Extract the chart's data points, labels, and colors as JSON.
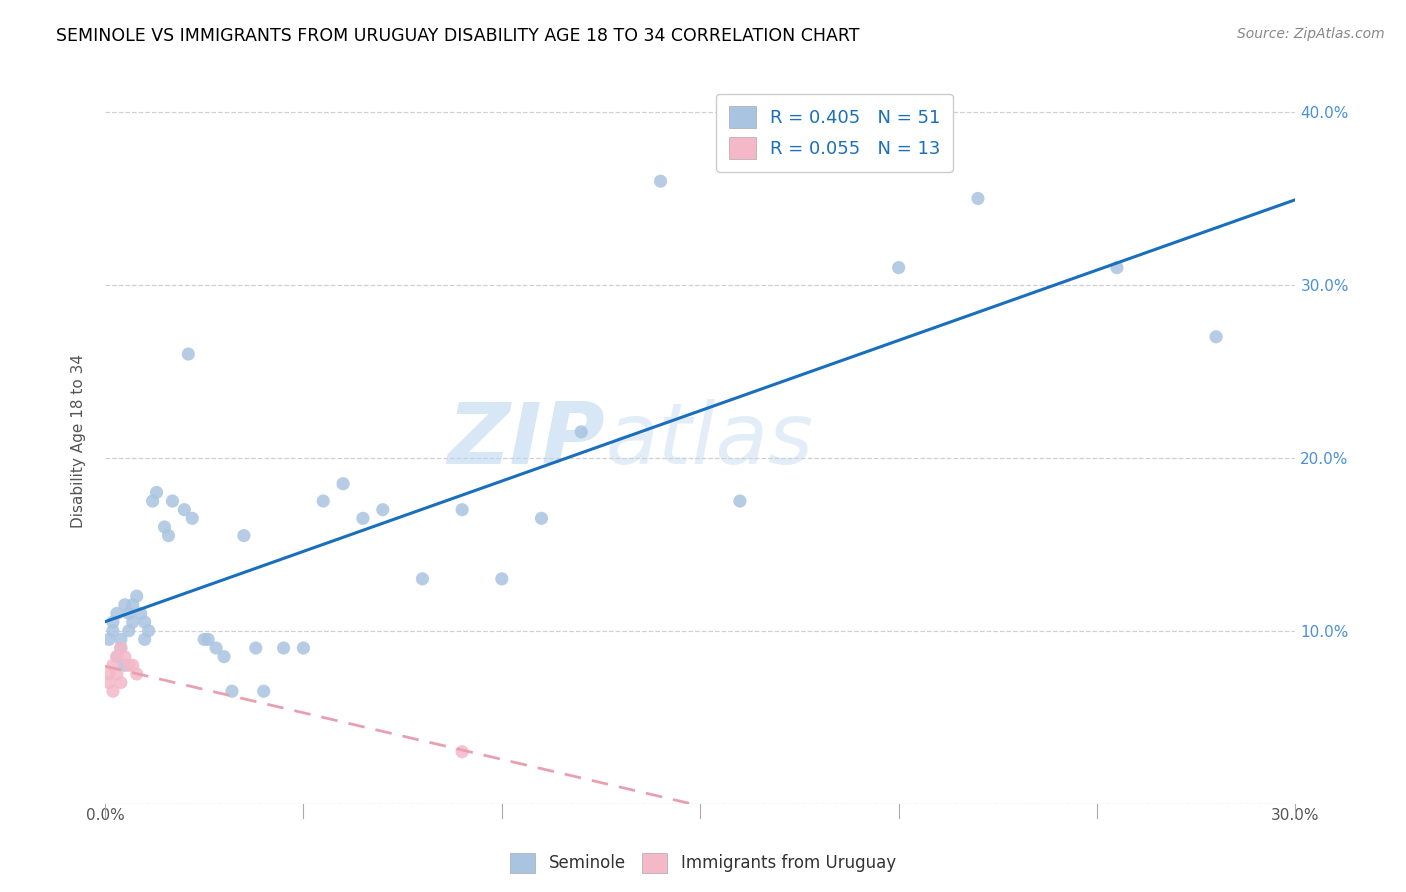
{
  "title": "SEMINOLE VS IMMIGRANTS FROM URUGUAY DISABILITY AGE 18 TO 34 CORRELATION CHART",
  "source": "Source: ZipAtlas.com",
  "ylabel": "Disability Age 18 to 34",
  "xlim": [
    0.0,
    0.3
  ],
  "ylim": [
    0.0,
    0.42
  ],
  "xtick_vals": [
    0.0,
    0.05,
    0.1,
    0.15,
    0.2,
    0.25,
    0.3
  ],
  "ytick_vals": [
    0.0,
    0.1,
    0.2,
    0.3,
    0.4
  ],
  "seminole_color": "#a8c4e0",
  "uruguay_color": "#f4b8c8",
  "line1_color": "#1a6fbd",
  "line2_color": "#e8a0b0",
  "watermark": "ZIPatlas",
  "seminole_x": [
    0.001,
    0.002,
    0.002,
    0.003,
    0.003,
    0.004,
    0.004,
    0.005,
    0.005,
    0.006,
    0.006,
    0.007,
    0.007,
    0.008,
    0.009,
    0.01,
    0.01,
    0.011,
    0.012,
    0.013,
    0.015,
    0.016,
    0.017,
    0.02,
    0.021,
    0.022,
    0.025,
    0.026,
    0.028,
    0.03,
    0.032,
    0.035,
    0.038,
    0.04,
    0.045,
    0.05,
    0.055,
    0.06,
    0.065,
    0.07,
    0.08,
    0.09,
    0.1,
    0.11,
    0.12,
    0.14,
    0.16,
    0.2,
    0.22,
    0.255,
    0.28
  ],
  "seminole_y": [
    0.095,
    0.1,
    0.105,
    0.085,
    0.11,
    0.09,
    0.095,
    0.115,
    0.08,
    0.11,
    0.1,
    0.115,
    0.105,
    0.12,
    0.11,
    0.095,
    0.105,
    0.1,
    0.175,
    0.18,
    0.16,
    0.155,
    0.175,
    0.17,
    0.26,
    0.165,
    0.095,
    0.095,
    0.09,
    0.085,
    0.065,
    0.155,
    0.09,
    0.065,
    0.09,
    0.09,
    0.175,
    0.185,
    0.165,
    0.17,
    0.13,
    0.17,
    0.13,
    0.165,
    0.215,
    0.36,
    0.175,
    0.31,
    0.35,
    0.31,
    0.27
  ],
  "uruguay_x": [
    0.001,
    0.001,
    0.002,
    0.002,
    0.003,
    0.003,
    0.004,
    0.004,
    0.005,
    0.006,
    0.007,
    0.008,
    0.09
  ],
  "uruguay_y": [
    0.075,
    0.07,
    0.08,
    0.065,
    0.085,
    0.075,
    0.09,
    0.07,
    0.085,
    0.08,
    0.08,
    0.075,
    0.03
  ]
}
